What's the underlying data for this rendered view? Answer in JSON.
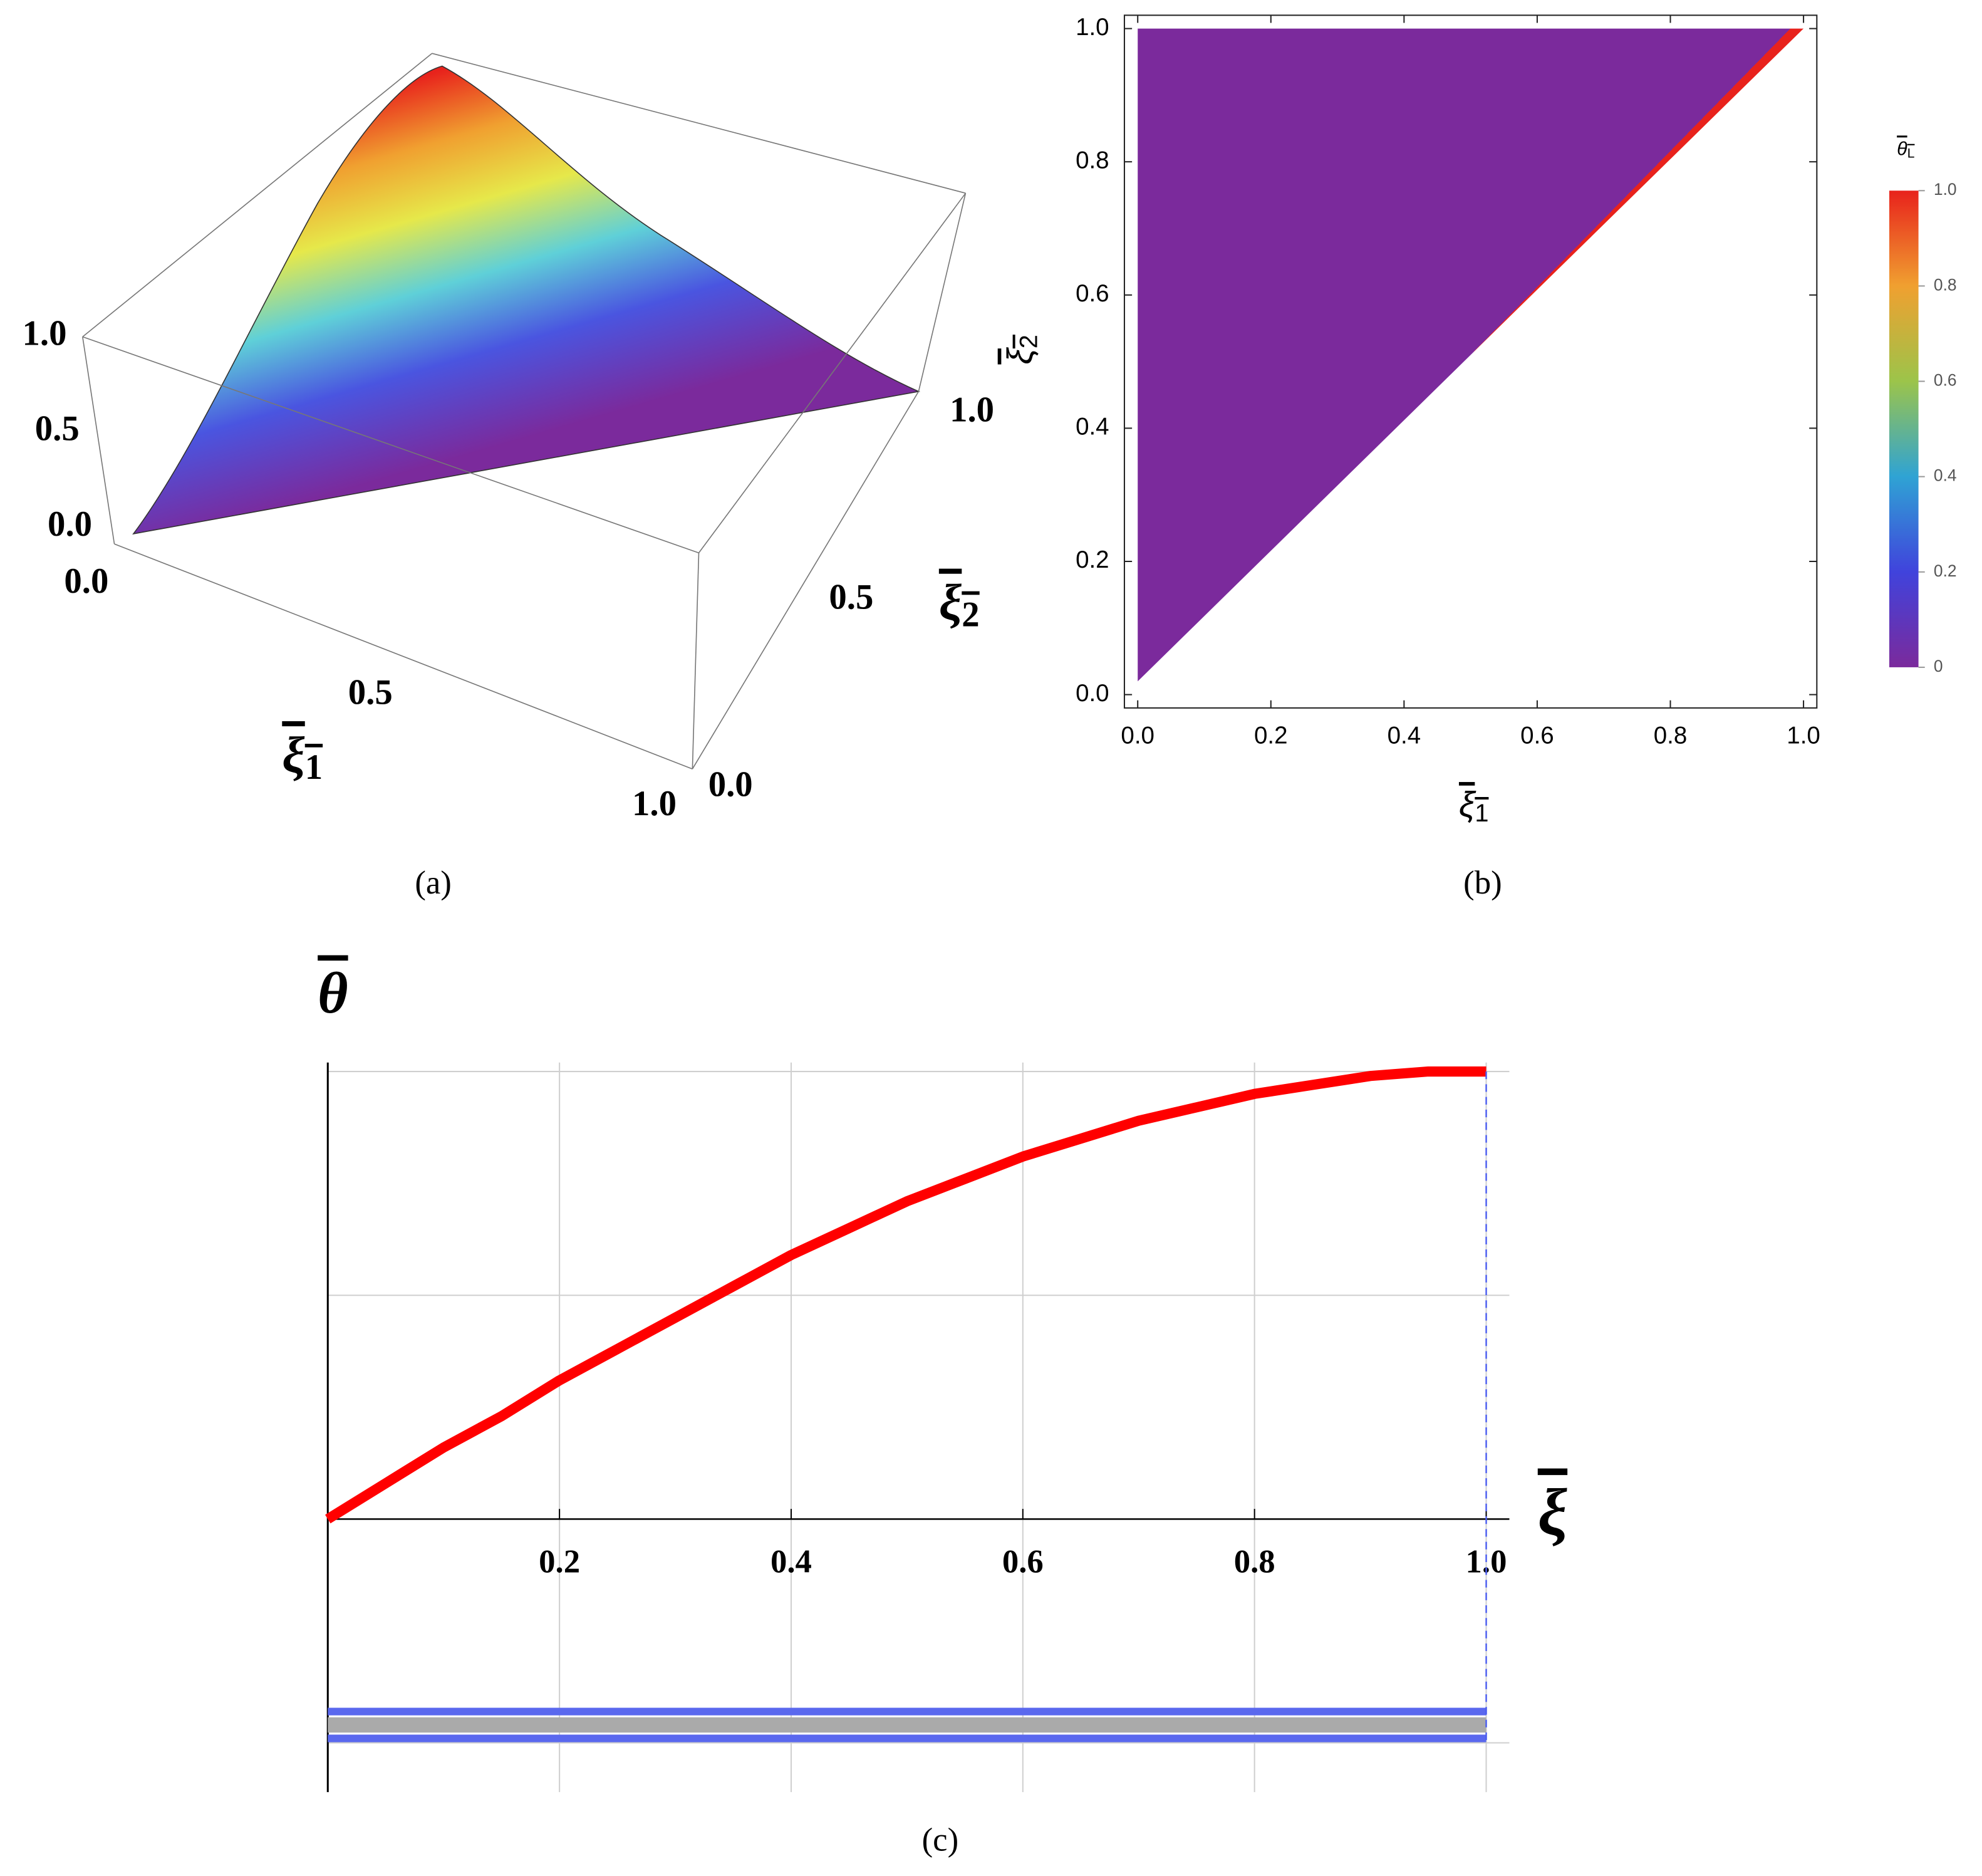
{
  "chart_data": [
    {
      "type": "surface3d",
      "caption": "(a)",
      "xlabel": {
        "symbol": "ξ",
        "subscript": "1"
      },
      "ylabel": {
        "symbol": "ξ",
        "subscript": "2"
      },
      "xlim": [
        0,
        1
      ],
      "ylim": [
        0,
        1
      ],
      "zlim": [
        0,
        1
      ],
      "xticks": [
        {
          "value": 0,
          "label": "0.0"
        },
        0.5,
        {
          "value": 1,
          "label": "1.0"
        }
      ],
      "yticks": [
        {
          "value": 0,
          "label": "0.0"
        },
        0.5,
        {
          "value": 1,
          "label": "1.0"
        }
      ],
      "zticks": [
        {
          "value": 0,
          "label": "0.0"
        },
        0.5,
        {
          "value": 1,
          "label": "1.0"
        }
      ]
    },
    {
      "type": "contour",
      "caption": "(b)",
      "xlabel": {
        "symbol": "ξ",
        "subscript": "1"
      },
      "ylabel": {
        "symbol": "ξ",
        "subscript": "2"
      },
      "xlim": [
        -0.02,
        1.02
      ],
      "ylim": [
        -0.02,
        1.02
      ],
      "xticks": [
        {
          "value": 0,
          "label": "0.0"
        },
        0.2,
        0.4,
        0.6,
        0.8,
        {
          "value": 1,
          "label": "1.0"
        }
      ],
      "yticks": [
        {
          "value": 0,
          "label": "0.0"
        },
        0.2,
        0.4,
        0.6,
        0.8,
        {
          "value": 1,
          "label": "1.0"
        }
      ],
      "region": {
        "x": [
          0,
          0,
          1
        ],
        "y": [
          0.02,
          1,
          1
        ]
      },
      "colorbar": {
        "title": {
          "symbol": "θ",
          "subscript": "L"
        },
        "lim": [
          0,
          1
        ],
        "ticks": [
          0,
          0.2,
          0.4,
          0.6,
          0.8,
          {
            "value": 1,
            "label": "1.0"
          }
        ],
        "colors": [
          "#7b2a9c",
          "#4043dc",
          "#2fa3d4",
          "#9cc44a",
          "#f0a030",
          "#e8221c"
        ]
      }
    },
    {
      "type": "line",
      "caption": "(c)",
      "xlabel": "ξ",
      "ylabel": "θ",
      "xlim": [
        0,
        1.02
      ],
      "ylim": [
        -0.61,
        1.02
      ],
      "xticks": [
        0.2,
        0.4,
        0.6,
        0.8,
        {
          "value": 1,
          "label": "1.0"
        }
      ],
      "ygrid": [
        -0.5,
        0.5,
        1
      ],
      "grid": true,
      "vline": {
        "x": 1,
        "color": "#4a5cf0"
      },
      "series": [
        {
          "color": "#ff0000",
          "width": 8,
          "x": [
            0,
            0.05,
            0.1,
            0.15,
            0.2,
            0.25,
            0.3,
            0.35,
            0.4,
            0.45,
            0.5,
            0.55,
            0.6,
            0.65,
            0.7,
            0.75,
            0.8,
            0.85,
            0.9,
            0.95,
            1
          ],
          "values": [
            0,
            0.08,
            0.16,
            0.23,
            0.31,
            0.38,
            0.45,
            0.52,
            0.59,
            0.65,
            0.71,
            0.76,
            0.81,
            0.85,
            0.89,
            0.92,
            0.95,
            0.97,
            0.99,
            1,
            1
          ]
        },
        {
          "color": "#5a68ee",
          "width": 6,
          "x": [
            0,
            1
          ],
          "values": [
            -0.43,
            -0.43
          ]
        },
        {
          "color": "#aaaaaa",
          "width": 12,
          "x": [
            0,
            1
          ],
          "values": [
            -0.46,
            -0.46
          ]
        },
        {
          "color": "#5a68ee",
          "width": 6,
          "x": [
            0,
            1
          ],
          "values": [
            -0.49,
            -0.49
          ]
        }
      ]
    }
  ]
}
